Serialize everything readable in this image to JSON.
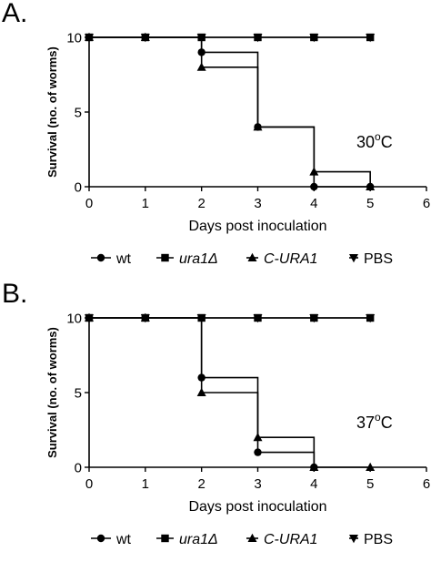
{
  "panels": [
    {
      "letter": "A.",
      "temperature": "30",
      "temperature_unit": "C"
    },
    {
      "letter": "B.",
      "temperature": "37",
      "temperature_unit": "C"
    }
  ],
  "legend_symbol": "Δ",
  "chart_data": [
    {
      "type": "line",
      "xlabel": "Days post inoculation",
      "ylabel": "Survival  (no. of worms)",
      "xlim": [
        0,
        6
      ],
      "ylim": [
        0,
        10
      ],
      "xticks": [
        0,
        1,
        2,
        3,
        4,
        5,
        6
      ],
      "yticks": [
        0,
        5,
        10
      ],
      "annotation": "30°C",
      "legend_placement": "bottom",
      "grid": false,
      "series": [
        {
          "name": "wt",
          "marker": "circle",
          "x": [
            0,
            1,
            2,
            3,
            4,
            5
          ],
          "values": [
            10,
            10,
            9,
            4,
            0,
            0
          ]
        },
        {
          "name": "ura1Δ",
          "marker": "square",
          "x": [
            0,
            1,
            2,
            3,
            4,
            5
          ],
          "values": [
            10,
            10,
            10,
            10,
            10,
            10
          ]
        },
        {
          "name": "C-URA1",
          "marker": "triangle-up",
          "x": [
            0,
            1,
            2,
            3,
            4,
            5
          ],
          "values": [
            10,
            10,
            8,
            4,
            1,
            0
          ]
        },
        {
          "name": "PBS",
          "marker": "triangle-down",
          "x": [
            0,
            1,
            2,
            3,
            4,
            5
          ],
          "values": [
            10,
            10,
            10,
            10,
            10,
            10
          ]
        }
      ]
    },
    {
      "type": "line",
      "xlabel": "Days post inoculation",
      "ylabel": "Survival  (no. of worms)",
      "xlim": [
        0,
        6
      ],
      "ylim": [
        0,
        10
      ],
      "xticks": [
        0,
        1,
        2,
        3,
        4,
        5,
        6
      ],
      "yticks": [
        0,
        5,
        10
      ],
      "annotation": "37°C",
      "legend_placement": "bottom",
      "grid": false,
      "series": [
        {
          "name": "wt",
          "marker": "circle",
          "x": [
            0,
            1,
            2,
            3,
            4
          ],
          "values": [
            10,
            10,
            6,
            1,
            0
          ]
        },
        {
          "name": "ura1Δ",
          "marker": "square",
          "x": [
            0,
            1,
            2,
            3,
            4,
            5
          ],
          "values": [
            10,
            10,
            10,
            10,
            10,
            10
          ]
        },
        {
          "name": "C-URA1",
          "marker": "triangle-up",
          "x": [
            0,
            1,
            2,
            3,
            4,
            5
          ],
          "values": [
            10,
            10,
            5,
            2,
            0,
            0
          ]
        },
        {
          "name": "PBS",
          "marker": "triangle-down",
          "x": [
            0,
            1,
            2,
            3,
            4,
            5
          ],
          "values": [
            10,
            10,
            10,
            10,
            10,
            10
          ]
        }
      ]
    }
  ]
}
